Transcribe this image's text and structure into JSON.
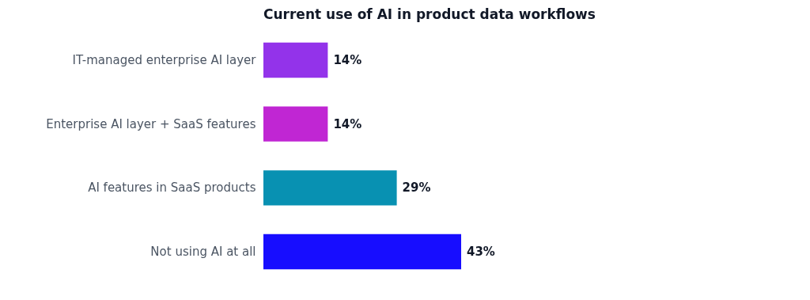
{
  "chart_data": {
    "type": "bar",
    "orientation": "horizontal",
    "title": "Current use of AI in product data workflows",
    "categories": [
      "IT-managed enterprise AI layer",
      "Enterprise AI layer + SaaS features",
      "AI features in SaaS products",
      "Not using AI at all"
    ],
    "values": [
      14,
      14,
      29,
      43
    ],
    "colors": [
      "#9333ea",
      "#c026d3",
      "#0891b2",
      "#170dff"
    ],
    "value_labels": [
      "14%",
      "14%",
      "29%",
      "43%"
    ]
  }
}
